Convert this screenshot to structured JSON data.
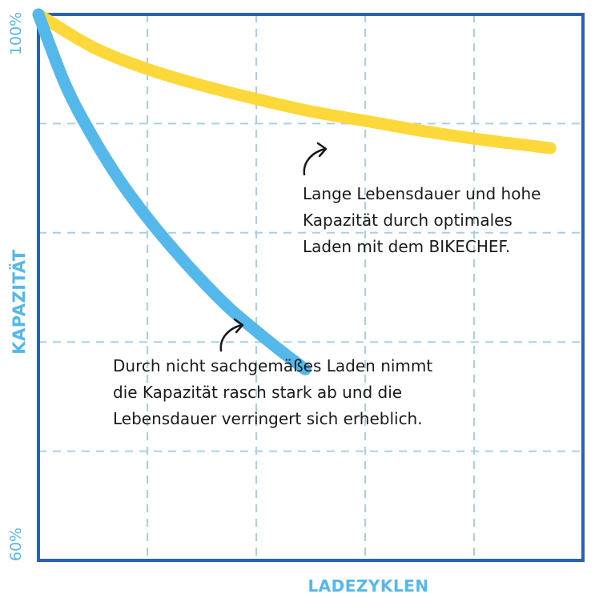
{
  "chart_data": {
    "type": "line",
    "title": "",
    "xlabel": "LADEZYKLEN",
    "ylabel": "KAPAZITÄT",
    "ytick_top": "100%",
    "ytick_bottom": "60%",
    "ylim": [
      60,
      100
    ],
    "xlim": [
      0,
      5
    ],
    "grid": true,
    "series": [
      {
        "color": "#fdd83a",
        "x": [
          0,
          0.5,
          1,
          1.5,
          2,
          2.5,
          3,
          3.5,
          4,
          4.5,
          4.7
        ],
        "values": [
          100,
          97.6,
          96.0,
          94.8,
          93.8,
          92.9,
          92.2,
          91.5,
          90.9,
          90.4,
          90.2
        ]
      },
      {
        "color": "#55b8ea",
        "x": [
          0,
          0.25,
          0.5,
          0.75,
          1,
          1.25,
          1.5,
          1.75,
          2,
          2.25,
          2.45
        ],
        "values": [
          100,
          94.8,
          91.0,
          87.8,
          85.1,
          82.7,
          80.5,
          78.5,
          76.8,
          75.2,
          74.0
        ]
      }
    ],
    "annotations": [
      {
        "text": "Lange Lebensdauer und hohe\nKapazität durch optimales\nLaden mit dem BIKECHEF."
      },
      {
        "text": "Durch nicht sachgemäßes Laden nimmt\ndie Kapazität rasch stark ab und die\nLebensdauer verringert sich erheblich."
      }
    ],
    "colors": {
      "axis": "#2a62b0",
      "grid": "#a9cfe8",
      "label": "#55b8ea",
      "arrow": "#1a1a1a"
    }
  }
}
